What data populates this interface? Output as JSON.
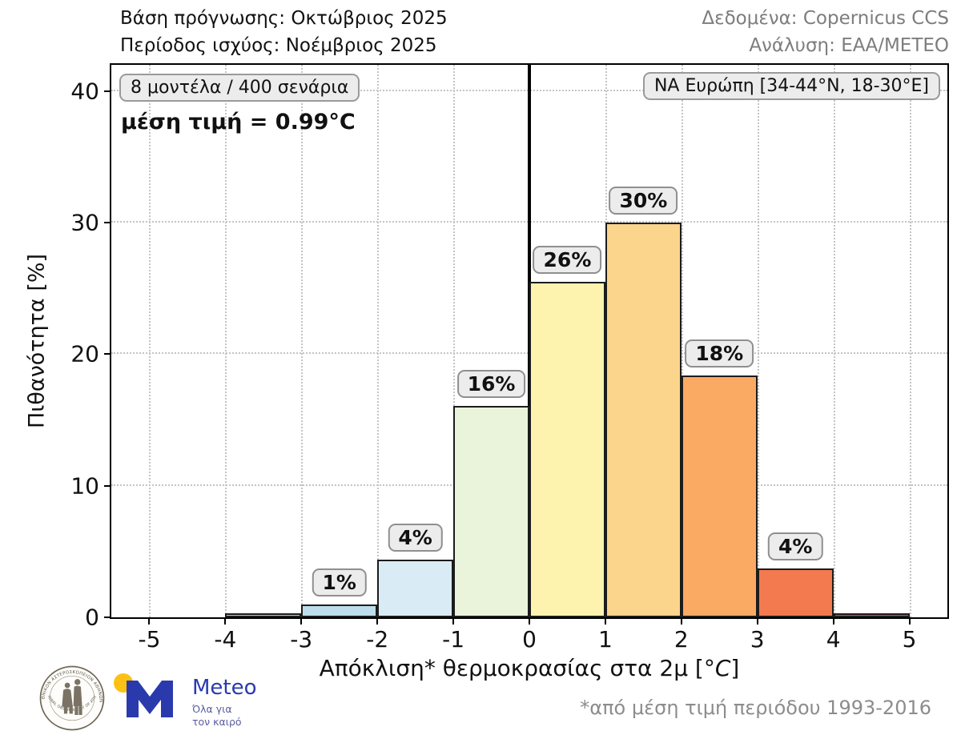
{
  "header": {
    "forecast_base": "Βάση πρόγνωσης: Οκτώβριος 2025",
    "valid_period": "Περίοδος ισχύος: Νοέμβριος 2025",
    "data_source": "Δεδομένα: Copernicus CCS",
    "analysis": "Ανάλυση: ΕΑΑ/ΜΕΤΕΟ"
  },
  "annotations": {
    "models_badge": "8 μοντέλα / 400 σενάρια",
    "mean_value": "μέση τιμή = 0.99°C",
    "region_badge": "ΝΑ Ευρώπη [34-44°N, 18-30°E]"
  },
  "chart_data": {
    "type": "bar",
    "title": "",
    "xlabel": "Απόκλιση* θερμοκρασίας στα 2μ [°C]",
    "xlabel_parts": [
      "Απόκλιση* θερμοκρασίας στα 2μ [°",
      "C",
      "]"
    ],
    "ylabel": "Πιθανότητα [%]",
    "xlim": [
      -5.5,
      5.5
    ],
    "ylim": [
      0,
      42
    ],
    "xticks": [
      -5,
      -4,
      -3,
      -2,
      -1,
      0,
      1,
      2,
      3,
      4,
      5
    ],
    "yticks": [
      0,
      10,
      20,
      30,
      40
    ],
    "grid": true,
    "legend": "none",
    "zero_line_x": 0,
    "bins": [
      {
        "range": [
          -4,
          -3
        ],
        "value": 0.3,
        "label": "",
        "color": "#abd2e5"
      },
      {
        "range": [
          -3,
          -2
        ],
        "value": 1.0,
        "label": "1%",
        "color": "#bddded"
      },
      {
        "range": [
          -2,
          -1
        ],
        "value": 4.4,
        "label": "4%",
        "color": "#d9ecf5"
      },
      {
        "range": [
          -1,
          0
        ],
        "value": 16.1,
        "label": "16%",
        "color": "#eaf4da"
      },
      {
        "range": [
          0,
          1
        ],
        "value": 25.5,
        "label": "26%",
        "color": "#fdf3af"
      },
      {
        "range": [
          1,
          2
        ],
        "value": 30.0,
        "label": "30%",
        "color": "#fcd58d"
      },
      {
        "range": [
          2,
          3
        ],
        "value": 18.4,
        "label": "18%",
        "color": "#fbaa64"
      },
      {
        "range": [
          3,
          4
        ],
        "value": 3.7,
        "label": "4%",
        "color": "#f37a4e"
      },
      {
        "range": [
          4,
          5
        ],
        "value": 0.3,
        "label": "",
        "color": "#e0523f"
      }
    ]
  },
  "footer": {
    "footnote": "*από μέση τιμή περιόδου 1993-2016",
    "meteo": {
      "name": "Meteo",
      "tagline": "Όλα για τον καιρό"
    },
    "seal": {
      "top_text": "ΕΘΝΙΚΟΝ ΑΣΤΕΡΟΣΚΟΠΕΙΟΝ ΑΘΗΝΩΝ",
      "bottom_text": "NATIONAL OBSERVATORY OF ATHENS"
    }
  }
}
